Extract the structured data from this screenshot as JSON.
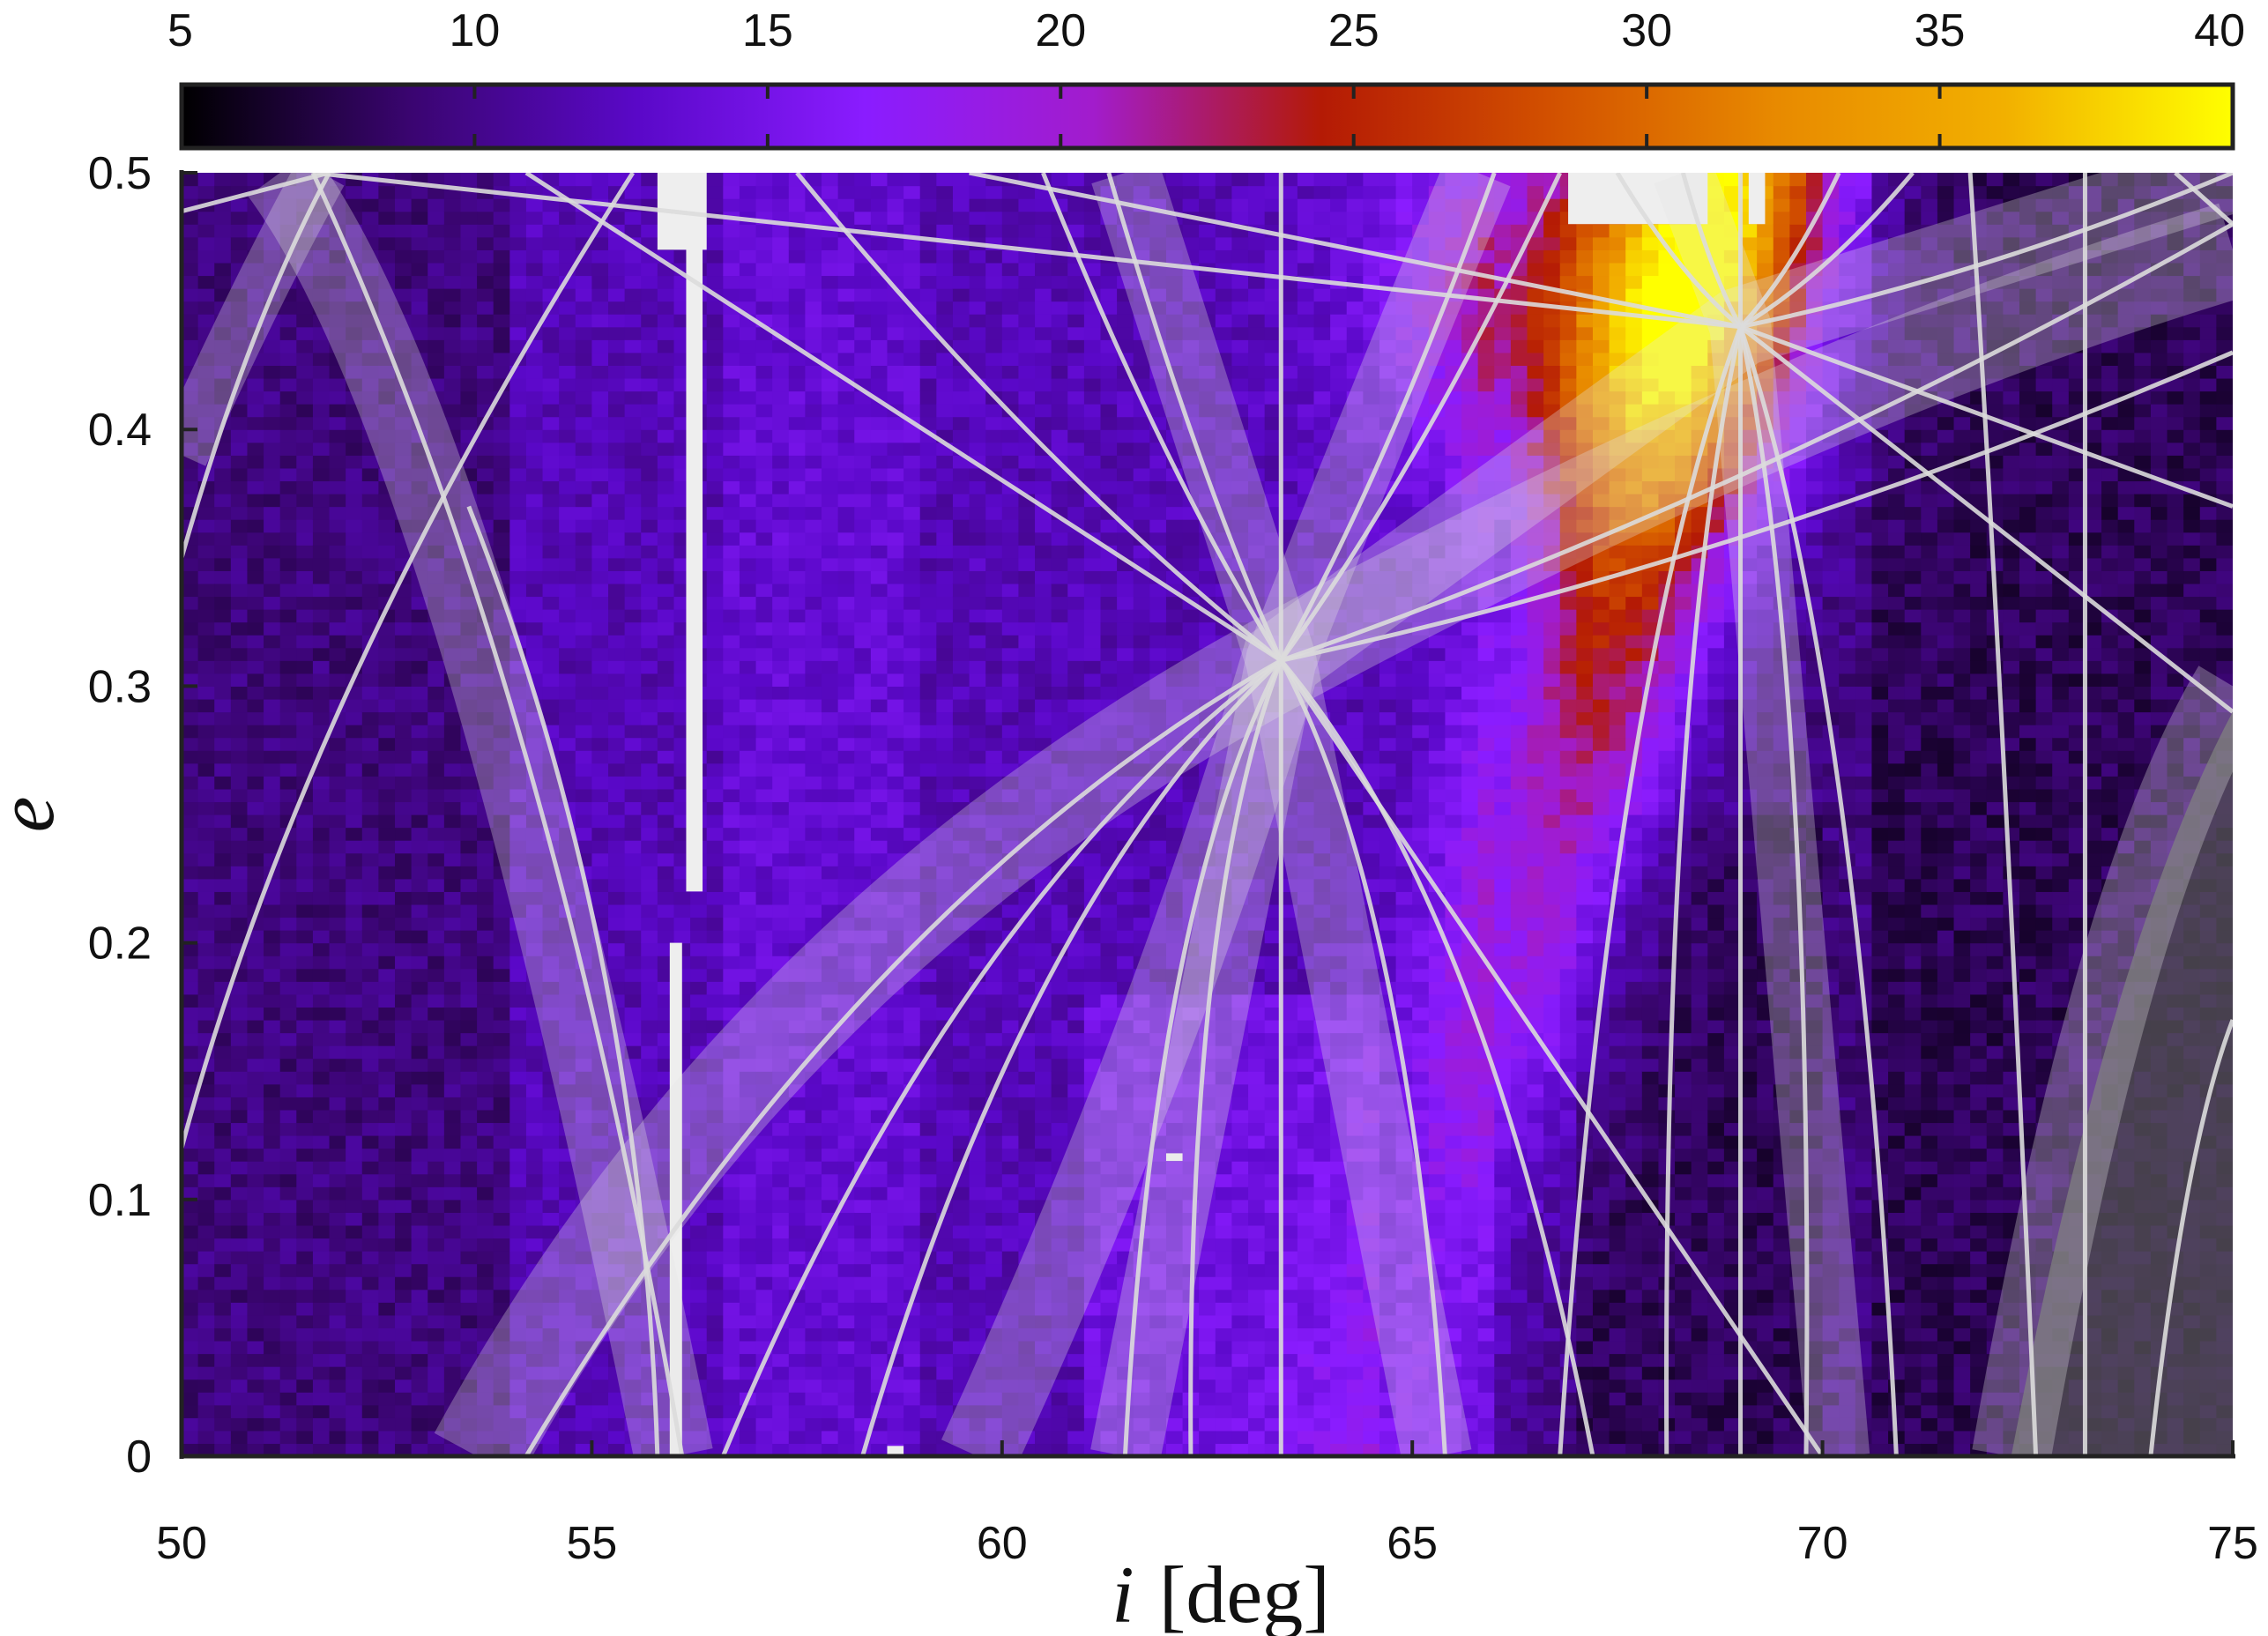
{
  "chart_data": {
    "type": "heatmap",
    "title": "",
    "xlabel_symbol": "i",
    "xlabel_unit": "[deg]",
    "ylabel": "e",
    "xlim": [
      50,
      75
    ],
    "ylim": [
      0,
      0.5
    ],
    "x_ticks": [
      50,
      55,
      60,
      65,
      70,
      75
    ],
    "x_tick_labels": [
      "50",
      "55",
      "60",
      "65",
      "70",
      "75"
    ],
    "y_ticks": [
      0,
      0.1,
      0.2,
      0.3,
      0.4,
      0.5
    ],
    "y_tick_labels": [
      "0",
      "0.1",
      "0.2",
      "0.3",
      "0.4",
      "0.5"
    ],
    "colorbar": {
      "min": 5,
      "max": 40,
      "ticks": [
        5,
        10,
        15,
        20,
        25,
        30,
        35,
        40
      ],
      "tick_labels": [
        "5",
        "10",
        "15",
        "20",
        "25",
        "30",
        "35",
        "40"
      ],
      "colormap": [
        "#000000",
        "#3a0570",
        "#5a08c8",
        "#8a1cff",
        "#a21ccc",
        "#b41a05",
        "#d25000",
        "#e88a00",
        "#f2b000",
        "#ffff00"
      ]
    },
    "colorbar_placement": "top",
    "overlay": {
      "line_color": "#dcdcdc",
      "band_color": "#e6e6e6",
      "convergence_points": [
        {
          "i": 63.4,
          "e": 0.31
        },
        {
          "i": 69.0,
          "e": 0.44
        }
      ],
      "vertical_lines_i": [
        63.4,
        69.0,
        73.2
      ],
      "bands_i_start": [
        53.2,
        59.5,
        71.9
      ],
      "bands_i_end": [
        63.4,
        69.0,
        75
      ]
    },
    "missing_data_color": "#eeeeee",
    "grey_region_color": "#555555"
  }
}
